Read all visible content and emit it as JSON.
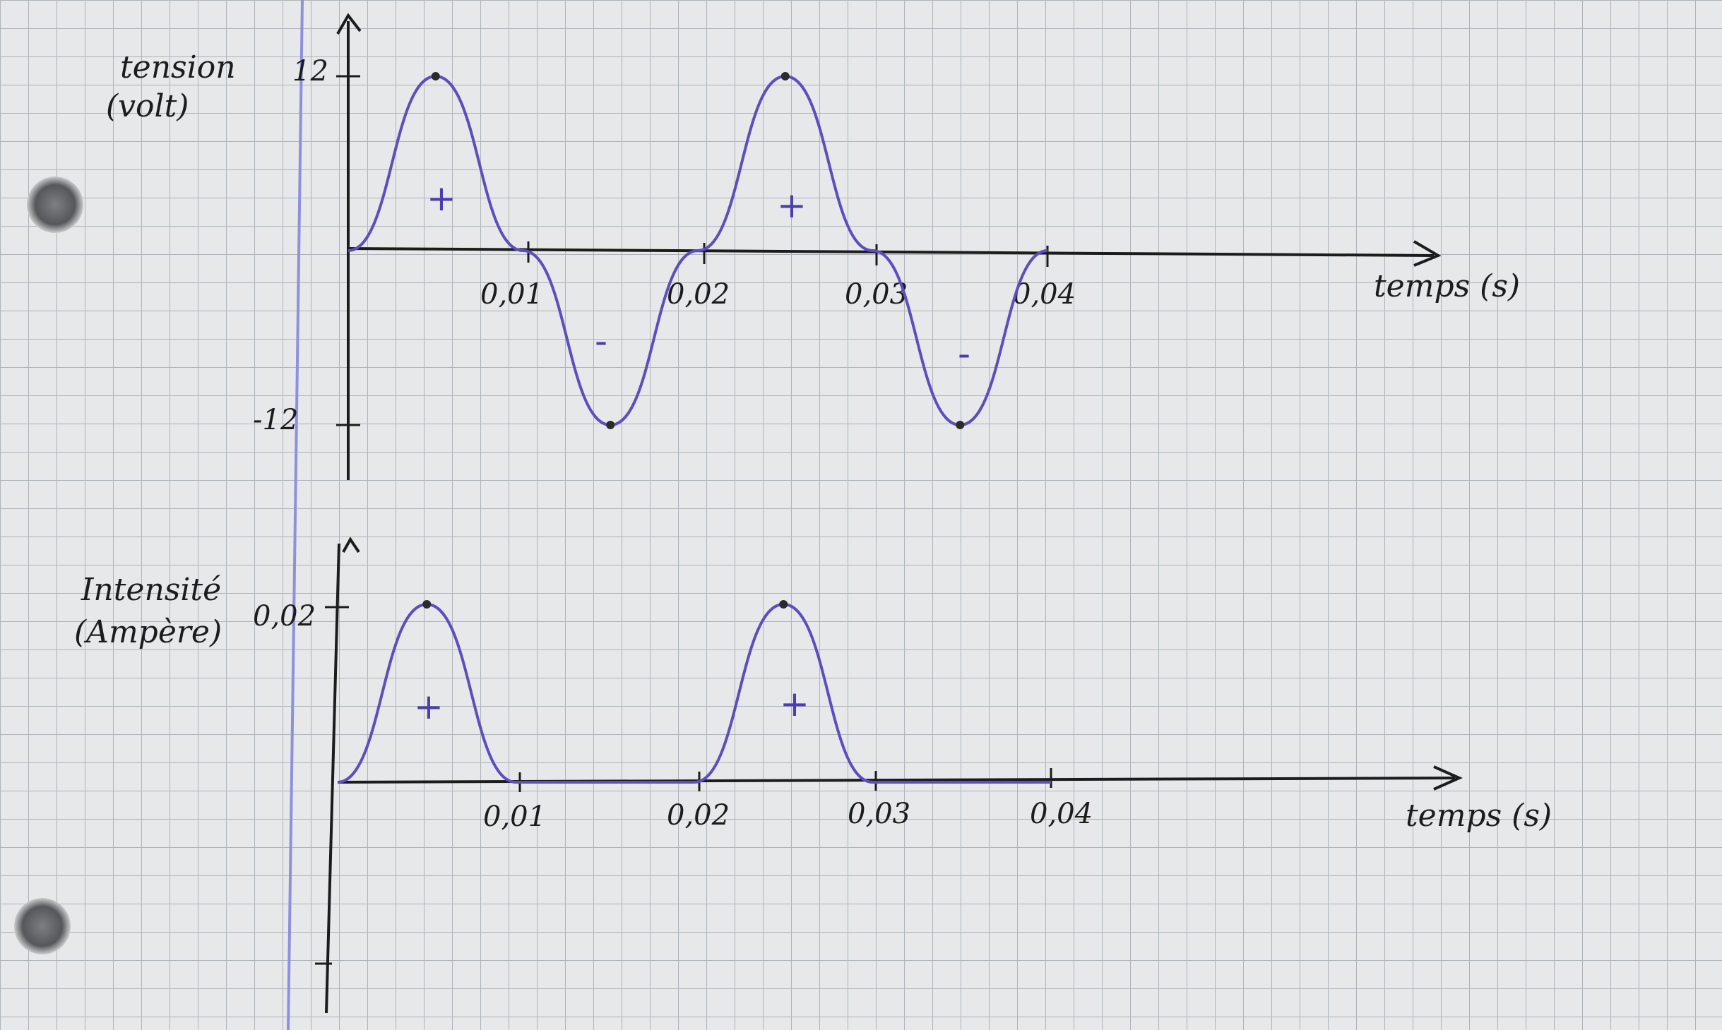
{
  "paper": {
    "background": "#e6e8e9",
    "grid_color": "#aeb4b8",
    "margin_line_color": "#8f8fe0",
    "ink_color": "#1c1c1c",
    "curve_color": "#5b4fc0"
  },
  "chart_data": [
    {
      "type": "line",
      "title": "",
      "ylabel_line1": "tension",
      "ylabel_line2": "(volt)",
      "xlabel": "temps (s)",
      "xlim": [
        0,
        0.04
      ],
      "ylim": [
        -12,
        12
      ],
      "x_tick_labels": [
        "0,01",
        "0,02",
        "0,03",
        "0,04"
      ],
      "x_ticks": [
        0.01,
        0.02,
        0.03,
        0.04
      ],
      "y_tick_labels": [
        "12",
        "-12"
      ],
      "y_ticks": [
        12,
        -12
      ],
      "series": [
        {
          "x": [
            0,
            0.005,
            0.01,
            0.015,
            0.02,
            0.025,
            0.03,
            0.035,
            0.04
          ],
          "values": [
            0,
            12,
            0,
            -12,
            0,
            12,
            0,
            -12,
            0
          ]
        }
      ],
      "annotations": [
        "+",
        "-",
        "+",
        "-"
      ],
      "grid": true
    },
    {
      "type": "line",
      "title": "",
      "ylabel_line1": "Intensité",
      "ylabel_line2": "(Ampère)",
      "xlabel": "temps (s)",
      "xlim": [
        0,
        0.04
      ],
      "ylim": [
        0,
        0.02
      ],
      "x_tick_labels": [
        "0,01",
        "0,02",
        "0,03",
        "0,04"
      ],
      "x_ticks": [
        0.01,
        0.02,
        0.03,
        0.04
      ],
      "y_tick_labels": [
        "0,02"
      ],
      "y_ticks": [
        0.02
      ],
      "series": [
        {
          "x": [
            0,
            0.005,
            0.01,
            0.015,
            0.02,
            0.025,
            0.03,
            0.035,
            0.04
          ],
          "values": [
            0,
            0.02,
            0,
            0,
            0,
            0.02,
            0,
            0,
            0
          ]
        }
      ],
      "annotations": [
        "+",
        "+"
      ],
      "grid": true
    }
  ]
}
